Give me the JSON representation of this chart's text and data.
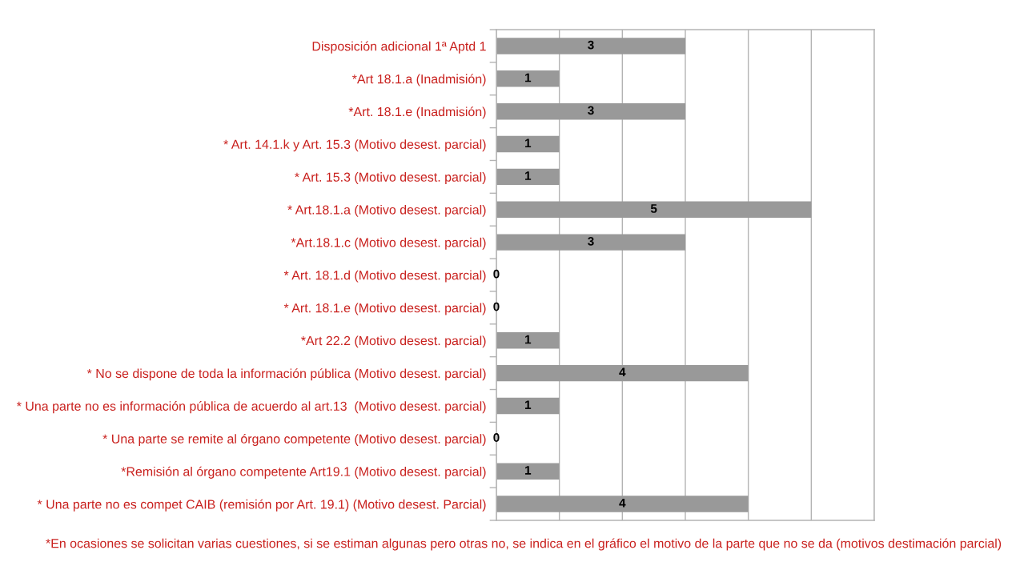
{
  "chart_data": {
    "type": "bar",
    "orientation": "horizontal",
    "categories": [
      "Disposición adicional 1ª Aptd 1",
      "*Art 18.1.a (Inadmisión)",
      "*Art. 18.1.e (Inadmisión)",
      "* Art. 14.1.k y Art. 15.3 (Motivo desest. parcial)",
      "* Art. 15.3 (Motivo desest. parcial)",
      "* Art.18.1.a (Motivo desest. parcial)",
      "*Art.18.1.c (Motivo desest. parcial)",
      "* Art. 18.1.d (Motivo desest. parcial)",
      "* Art. 18.1.e (Motivo desest. parcial)",
      "*Art 22.2 (Motivo desest. parcial)",
      "* No se dispone de toda la información pública (Motivo desest. parcial)",
      "* Una parte no es información pública de acuerdo al art.13  (Motivo desest. parcial)",
      "* Una parte se remite al órgano competente (Motivo desest. parcial)",
      "*Remisión al órgano competente Art19.1 (Motivo desest. parcial)",
      "* Una parte no es compet CAIB (remisión por Art. 19.1) (Motivo desest. Parcial)"
    ],
    "values": [
      3,
      1,
      3,
      1,
      1,
      5,
      3,
      0,
      0,
      1,
      4,
      1,
      0,
      1,
      4
    ],
    "color": "#999999",
    "data_labels": true,
    "xlim": [
      0,
      6
    ],
    "xticks": [
      {
        "value": 0,
        "label": null
      },
      {
        "value": 1,
        "label": null
      },
      {
        "value": 2,
        "label": null
      },
      {
        "value": 3,
        "label": null
      },
      {
        "value": 4,
        "label": null
      },
      {
        "value": 5,
        "label": null
      },
      {
        "value": 6,
        "label": null
      }
    ],
    "tick_labels": "y",
    "grid": "x",
    "annotations": [
      "*En ocasiones se solicitan varias cuestiones, si se estiman algunas pero otras no, se indica en el gráfico el motivo de la parte que no se da (motivos destimación parcial)"
    ]
  }
}
